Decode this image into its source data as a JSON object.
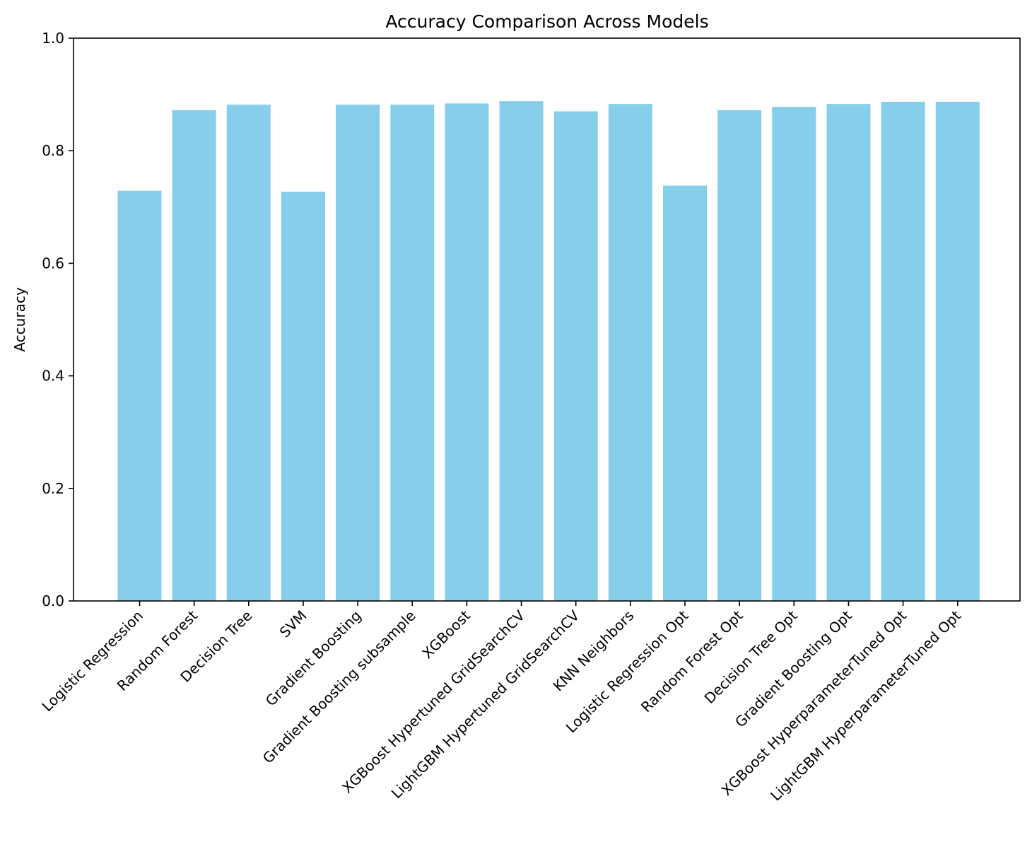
{
  "chart_data": {
    "type": "bar",
    "title": "Accuracy Comparison Across Models",
    "xlabel": "",
    "ylabel": "Accuracy",
    "ylim": [
      0,
      1.0
    ],
    "yticks": [
      "0.0",
      "0.2",
      "0.4",
      "0.6",
      "0.8",
      "1.0"
    ],
    "grid": false,
    "bar_color": "#87CEEB",
    "categories": [
      "Logistic Regression",
      "Random Forest",
      "Decision Tree",
      "SVM",
      "Gradient Boosting",
      "Gradient Boosting subsample",
      "XGBoost",
      "XGBoost Hypertuned GridSearchCV",
      "LightGBM Hypertuned GridSearchCV",
      "KNN Neighbors",
      "Logistic Regression Opt",
      "Random Forest Opt",
      "Decision Tree Opt",
      "Gradient Boosting Opt",
      "XGBoost HyperparameterTuned Opt",
      "LightGBM HyperparameterTuned Opt"
    ],
    "values": [
      0.729,
      0.872,
      0.882,
      0.727,
      0.882,
      0.882,
      0.884,
      0.888,
      0.87,
      0.883,
      0.738,
      0.872,
      0.878,
      0.883,
      0.887,
      0.887
    ]
  }
}
